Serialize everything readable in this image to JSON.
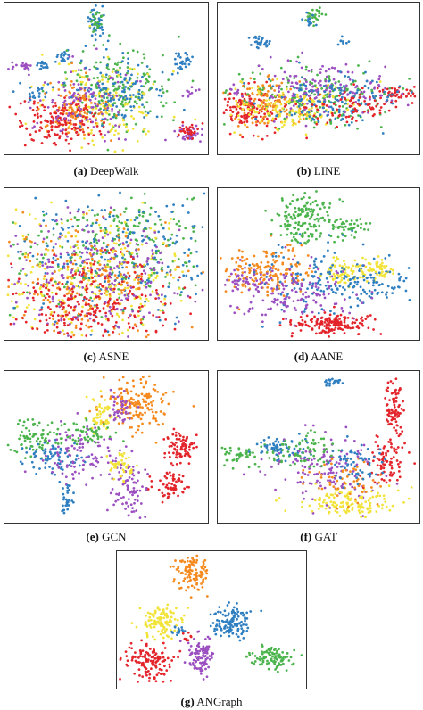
{
  "colors": {
    "blue": "#2f7fc1",
    "green": "#4cb44c",
    "orange": "#f58a1f",
    "yellow": "#f2e33a",
    "purple": "#9b4fc0",
    "red": "#e3242b"
  },
  "chart_data": [
    {
      "id": "a",
      "type": "scatter",
      "label": "(a)",
      "name": "DeepWalk"
    },
    {
      "id": "b",
      "type": "scatter",
      "label": "(b)",
      "name": "LINE"
    },
    {
      "id": "c",
      "type": "scatter",
      "label": "(c)",
      "name": "ASNE"
    },
    {
      "id": "d",
      "type": "scatter",
      "label": "(d)",
      "name": "AANE"
    },
    {
      "id": "e",
      "type": "scatter",
      "label": "(e)",
      "name": "GCN"
    },
    {
      "id": "f",
      "type": "scatter",
      "label": "(f)",
      "name": "GAT"
    },
    {
      "id": "g",
      "type": "scatter",
      "label": "(g)",
      "name": "ANGraph"
    }
  ]
}
